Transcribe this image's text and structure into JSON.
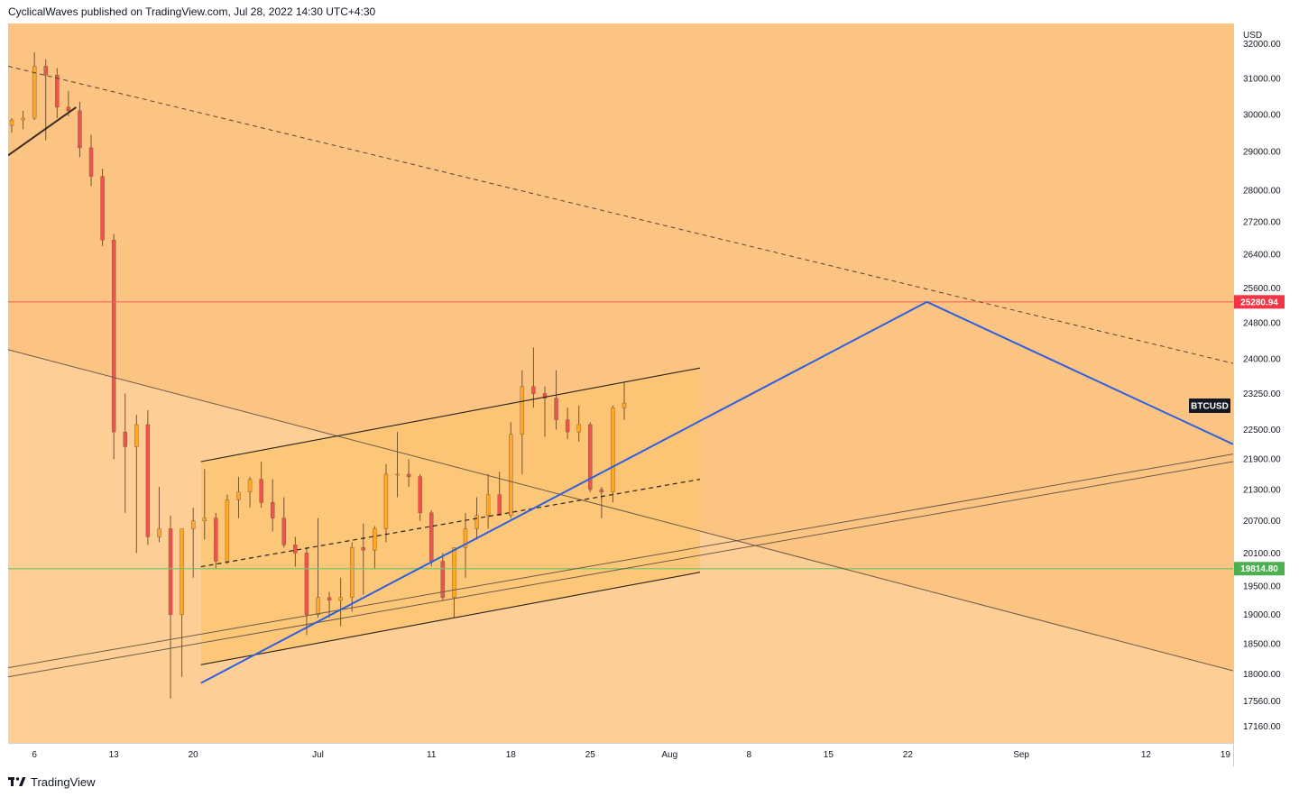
{
  "header": {
    "published_text": "CyclicalWaves published on TradingView.com, Jul 28, 2022 14:30 UTC+4:30"
  },
  "footer": {
    "brand": "TradingView",
    "logo_icon": "tradingview-logo-icon"
  },
  "colors": {
    "background_fill": "#fdcf97",
    "zone_fill": "#fcc482",
    "channel_fill": "#fbc673",
    "up_candle": "#ffa726",
    "down_candle": "#ef5350",
    "wick": "#7a5230",
    "blue_line": "#2f5fe0",
    "resistance_line": "#f06655",
    "support_line": "#7cc46b",
    "resistance_badge": "#f23645",
    "support_badge": "#4caf50"
  },
  "chart_data": {
    "type": "candlestick",
    "symbol": "BTCUSD",
    "currency": "USD",
    "y_axis_label": "USD",
    "y_ticks": [
      "32000.00",
      "31000.00",
      "30000.00",
      "29000.00",
      "28000.00",
      "27200.00",
      "26400.00",
      "25600.00",
      "24800.00",
      "24000.00",
      "23250.00",
      "22500.00",
      "21900.00",
      "21300.00",
      "20700.00",
      "20100.00",
      "19500.00",
      "19000.00",
      "18500.00",
      "18000.00",
      "17560.00",
      "17160.00"
    ],
    "x_ticks": [
      "6",
      "13",
      "20",
      "Jul",
      "11",
      "18",
      "25",
      "Aug",
      "8",
      "15",
      "22",
      "Sep",
      "12",
      "19"
    ],
    "y_scale": "log",
    "x_range": [
      "2022-06-04",
      "2022-09-20"
    ],
    "y_range": [
      16900,
      32600
    ],
    "horizontal_levels": [
      {
        "price": 25280.94,
        "label": "25280.94",
        "color": "#f06655",
        "badge_color": "#f23645"
      },
      {
        "price": 19814.8,
        "label": "19814.80",
        "color": "#7cc46b",
        "badge_color": "#4caf50"
      }
    ],
    "current_price_tag": "BTCUSD",
    "candles_daily_ohlc": [
      [
        "2022-06-04",
        29700,
        29900,
        29500,
        29850
      ],
      [
        "2022-06-05",
        29850,
        30100,
        29600,
        29900
      ],
      [
        "2022-06-06",
        29900,
        31750,
        29850,
        31350
      ],
      [
        "2022-06-07",
        31350,
        31550,
        29300,
        31100
      ],
      [
        "2022-06-08",
        31100,
        31300,
        29900,
        30200
      ],
      [
        "2022-06-09",
        30200,
        30650,
        29950,
        30100
      ],
      [
        "2022-06-10",
        30100,
        30350,
        28850,
        29100
      ],
      [
        "2022-06-11",
        29100,
        29450,
        28100,
        28350
      ],
      [
        "2022-06-12",
        28350,
        28550,
        26600,
        26750
      ],
      [
        "2022-06-13",
        26750,
        26900,
        21900,
        22450
      ],
      [
        "2022-06-14",
        22450,
        23250,
        20850,
        22150
      ],
      [
        "2022-06-15",
        22150,
        22800,
        20100,
        22600
      ],
      [
        "2022-06-16",
        22600,
        22900,
        20250,
        20400
      ],
      [
        "2022-06-17",
        20400,
        21350,
        20300,
        20550
      ],
      [
        "2022-06-18",
        20550,
        20800,
        17600,
        19000
      ],
      [
        "2022-06-19",
        19000,
        20400,
        17950,
        20550
      ],
      [
        "2022-06-20",
        20550,
        20950,
        19650,
        20700
      ],
      [
        "2022-06-21",
        20700,
        21700,
        20350,
        20750
      ],
      [
        "2022-06-22",
        20750,
        20850,
        19800,
        19950
      ],
      [
        "2022-06-23",
        19950,
        21200,
        19900,
        21100
      ],
      [
        "2022-06-24",
        21100,
        21550,
        20750,
        21250
      ],
      [
        "2022-06-25",
        21250,
        21550,
        20950,
        21500
      ],
      [
        "2022-06-26",
        21500,
        21850,
        20950,
        21050
      ],
      [
        "2022-06-27",
        21050,
        21500,
        20500,
        20750
      ],
      [
        "2022-06-28",
        20750,
        21150,
        20200,
        20250
      ],
      [
        "2022-06-29",
        20250,
        20400,
        19850,
        20100
      ],
      [
        "2022-06-30",
        20100,
        20200,
        18650,
        19000
      ],
      [
        "2022-07-01",
        19000,
        20750,
        18950,
        19300
      ],
      [
        "2022-07-02",
        19300,
        19400,
        18950,
        19250
      ],
      [
        "2022-07-03",
        19250,
        19650,
        18800,
        19300
      ],
      [
        "2022-07-04",
        19300,
        20300,
        19050,
        20200
      ],
      [
        "2022-07-05",
        20200,
        20650,
        19350,
        20150
      ],
      [
        "2022-07-06",
        20150,
        20600,
        19800,
        20550
      ],
      [
        "2022-07-07",
        20550,
        21800,
        20300,
        21600
      ],
      [
        "2022-07-08",
        21600,
        22450,
        21150,
        21600
      ],
      [
        "2022-07-09",
        21600,
        21900,
        21350,
        21550
      ],
      [
        "2022-07-10",
        21550,
        21600,
        20700,
        20850
      ],
      [
        "2022-07-11",
        20850,
        20900,
        19850,
        19950
      ],
      [
        "2022-07-12",
        19950,
        20100,
        19250,
        19300
      ],
      [
        "2022-07-13",
        19300,
        20200,
        18950,
        20200
      ],
      [
        "2022-07-14",
        20200,
        20850,
        19650,
        20550
      ],
      [
        "2022-07-15",
        20550,
        21150,
        20350,
        20800
      ],
      [
        "2022-07-16",
        20800,
        21600,
        20550,
        21200
      ],
      [
        "2022-07-17",
        21200,
        21650,
        20800,
        20800
      ],
      [
        "2022-07-18",
        20800,
        22650,
        20750,
        22400
      ],
      [
        "2022-07-19",
        22400,
        23750,
        21600,
        23400
      ],
      [
        "2022-07-20",
        23400,
        24250,
        22950,
        23250
      ],
      [
        "2022-07-21",
        23250,
        23400,
        22350,
        23150
      ],
      [
        "2022-07-22",
        23150,
        23750,
        22500,
        22700
      ],
      [
        "2022-07-23",
        22700,
        22950,
        22300,
        22450
      ],
      [
        "2022-07-24",
        22450,
        23000,
        22250,
        22600
      ],
      [
        "2022-07-25",
        22600,
        22650,
        21250,
        21300
      ],
      [
        "2022-07-26",
        21300,
        21350,
        20750,
        21250
      ],
      [
        "2022-07-27",
        21250,
        23000,
        21050,
        22950
      ],
      [
        "2022-07-28",
        22950,
        23500,
        22700,
        23050
      ]
    ],
    "trendlines": [
      {
        "style": "dashed",
        "from": [
          "2022-06-04",
          31350
        ],
        "to": [
          "2022-09-20",
          23900
        ]
      },
      {
        "style": "solid",
        "from": [
          "2022-06-04",
          24200
        ],
        "to": [
          "2022-09-20",
          18050
        ]
      },
      {
        "style": "solid",
        "from": [
          "2022-06-04",
          18100
        ],
        "to": [
          "2022-09-20",
          22000
        ]
      },
      {
        "style": "solid",
        "from": [
          "2022-06-04",
          17950
        ],
        "to": [
          "2022-09-20",
          21850
        ]
      },
      {
        "style": "solid",
        "from": [
          "2022-06-04",
          28900
        ],
        "to": [
          "2022-06-10",
          30200
        ]
      },
      {
        "style": "channel-upper",
        "from": [
          "2022-06-21",
          21850
        ],
        "to": [
          "2022-08-04",
          23800
        ]
      },
      {
        "style": "channel-mid",
        "from": [
          "2022-06-21",
          19850
        ],
        "to": [
          "2022-08-04",
          21500
        ]
      },
      {
        "style": "channel-lower",
        "from": [
          "2022-06-21",
          18150
        ],
        "to": [
          "2022-08-04",
          19750
        ]
      },
      {
        "style": "projection",
        "from": [
          "2022-06-21",
          17850
        ],
        "to": [
          "2022-08-24",
          25280.94
        ]
      },
      {
        "style": "projection",
        "from": [
          "2022-08-24",
          25280.94
        ],
        "to": [
          "2022-09-20",
          22200
        ]
      }
    ]
  }
}
